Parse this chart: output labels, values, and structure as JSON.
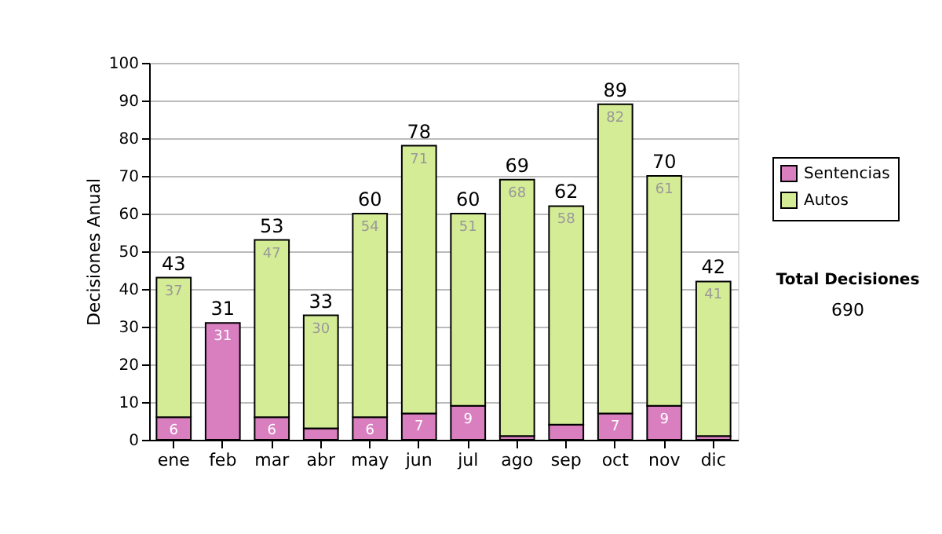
{
  "chart_data": {
    "type": "bar",
    "stacked": true,
    "ylabel": "Decisiones Anual",
    "categories": [
      "ene",
      "feb",
      "mar",
      "abr",
      "may",
      "jun",
      "jul",
      "ago",
      "sep",
      "oct",
      "nov",
      "dic"
    ],
    "series": [
      {
        "name": "Sentencias",
        "color": "#d97fc0",
        "values": [
          6,
          31,
          6,
          3,
          6,
          7,
          9,
          1,
          4,
          7,
          9,
          1
        ],
        "value_labels": [
          "6",
          "31",
          "6",
          null,
          "6",
          "7",
          "9",
          null,
          null,
          "7",
          "9",
          null
        ]
      },
      {
        "name": "Autos",
        "color": "#d5ec96",
        "values": [
          37,
          0,
          47,
          30,
          54,
          71,
          51,
          68,
          58,
          82,
          61,
          41
        ],
        "value_labels": [
          "37",
          null,
          "47",
          "30",
          "54",
          "71",
          "51",
          "68",
          "58",
          "82",
          "61",
          "41"
        ]
      }
    ],
    "totals": [
      "43",
      "31",
      "53",
      "33",
      "60",
      "78",
      "60",
      "69",
      "62",
      "89",
      "70",
      "42"
    ],
    "ylim": [
      0,
      100
    ],
    "yticks": [
      0,
      10,
      20,
      30,
      40,
      50,
      60,
      70,
      80,
      90,
      100
    ],
    "grid": "y",
    "legend": "right",
    "annotations": [
      "Total Decisiones",
      "690"
    ]
  }
}
